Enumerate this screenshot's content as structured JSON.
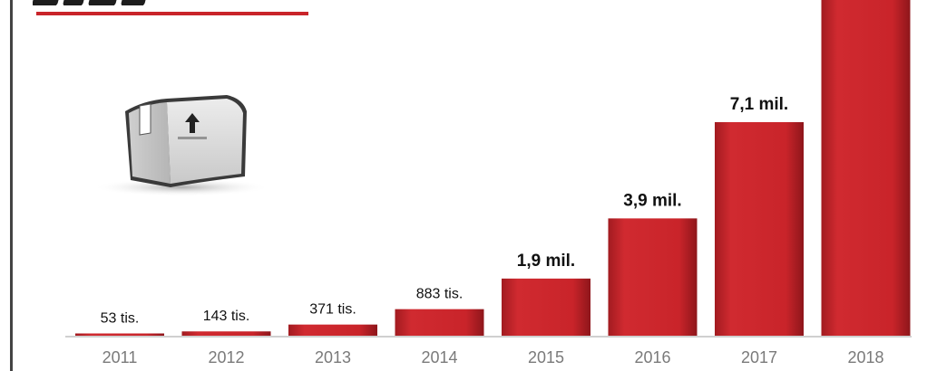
{
  "chart_data": {
    "type": "bar",
    "categories": [
      "2011",
      "2012",
      "2013",
      "2014",
      "2015",
      "2016",
      "2017",
      "2018"
    ],
    "values": [
      0.053,
      0.143,
      0.371,
      0.883,
      1.9,
      3.9,
      7.1,
      14
    ],
    "value_labels": [
      "53 tis.",
      "143 tis.",
      "371 tis.",
      "883 tis.",
      "1,9 mil.",
      "3,9 mil.",
      "7,1 mil.",
      ""
    ],
    "title": "",
    "xlabel": "",
    "ylabel": "",
    "grid": false,
    "colors": {
      "bar": "#c9242a",
      "bar_dark": "#a21b20",
      "axis": "#d0d0d0",
      "accent": "#c9242a"
    }
  },
  "decor": {
    "icon": "parcel-box-icon"
  }
}
